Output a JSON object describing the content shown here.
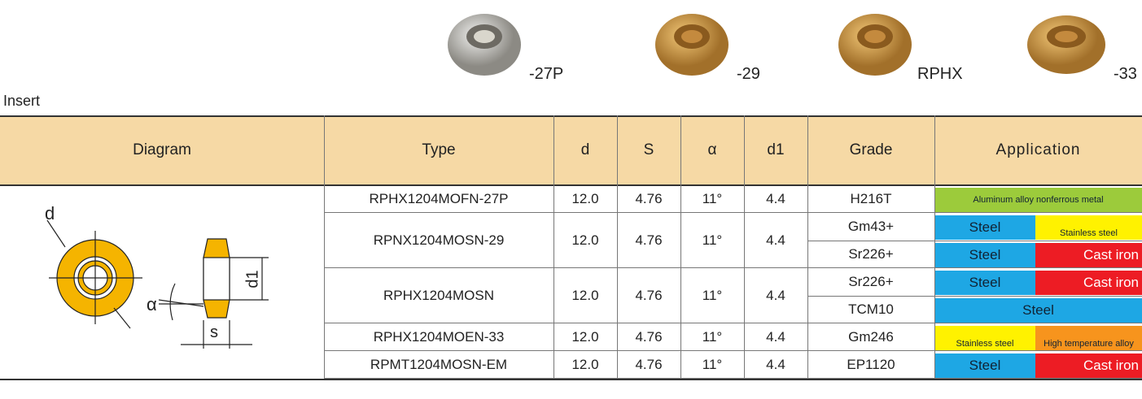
{
  "products": [
    {
      "label": "-27P"
    },
    {
      "label": "-29"
    },
    {
      "label": "RPHX"
    },
    {
      "label": "-33"
    }
  ],
  "section_label": "Insert",
  "table": {
    "columns": [
      "Diagram",
      "Type",
      "d",
      "S",
      "α",
      "d1",
      "Grade",
      "Application"
    ],
    "diagram_labels": {
      "d": "d",
      "d1": "d1",
      "alpha": "α",
      "s": "s"
    },
    "rows": [
      {
        "type": "RPHX1204MOFN-27P",
        "d": "12.0",
        "s": "4.76",
        "alpha": "11°",
        "d1": "4.4",
        "grades": [
          {
            "grade": "H216T",
            "application": [
              {
                "text": "Aluminum alloy nonferrous metal",
                "color": "#9ccb3b"
              }
            ]
          }
        ]
      },
      {
        "type": "RPNX1204MOSN-29",
        "d": "12.0",
        "s": "4.76",
        "alpha": "11°",
        "d1": "4.4",
        "grades": [
          {
            "grade": "Gm43+",
            "application": [
              {
                "text": "Steel",
                "color": "#1ea7e4"
              },
              {
                "text": "Stainless steel",
                "color": "#fff200"
              }
            ]
          },
          {
            "grade": "Sr226+",
            "application": [
              {
                "text": "Steel",
                "color": "#1ea7e4"
              },
              {
                "text": "Cast iron",
                "color": "#ed1c24"
              }
            ]
          }
        ]
      },
      {
        "type": "RPHX1204MOSN",
        "d": "12.0",
        "s": "4.76",
        "alpha": "11°",
        "d1": "4.4",
        "grades": [
          {
            "grade": "Sr226+",
            "application": [
              {
                "text": "Steel",
                "color": "#1ea7e4"
              },
              {
                "text": "Cast iron",
                "color": "#ed1c24"
              }
            ]
          },
          {
            "grade": "TCM10",
            "application": [
              {
                "text": "Steel",
                "color": "#1ea7e4"
              }
            ]
          }
        ]
      },
      {
        "type": "RPHX1204MOEN-33",
        "d": "12.0",
        "s": "4.76",
        "alpha": "11°",
        "d1": "4.4",
        "grades": [
          {
            "grade": "Gm246",
            "application": [
              {
                "text": "Stainless steel",
                "color": "#fff200"
              },
              {
                "text": "High temperature alloy",
                "color": "#f7941d"
              }
            ]
          }
        ]
      },
      {
        "type": "RPMT1204MOSN-EM",
        "d": "12.0",
        "s": "4.76",
        "alpha": "11°",
        "d1": "4.4",
        "grades": [
          {
            "grade": "EP1120",
            "application": [
              {
                "text": "Steel",
                "color": "#1ea7e4"
              },
              {
                "text": "Cast iron",
                "color": "#ed1c24"
              }
            ]
          }
        ]
      }
    ]
  }
}
